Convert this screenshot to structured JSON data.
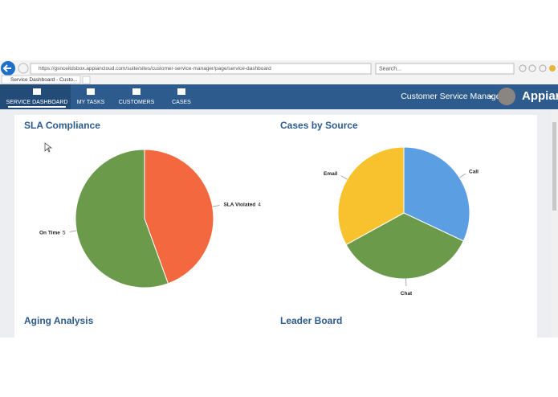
{
  "browser": {
    "url": "https://gsnceitdsbox.appiancloud.com/suite/sites/customer-service-manager/page/service-dashboard",
    "tab_title": "Service Dashboard - Custo...",
    "search_placeholder": "Search..."
  },
  "nav": {
    "items": [
      "SERVICE DASHBOARD",
      "MY TASKS",
      "CUSTOMERS",
      "CASES"
    ],
    "user_title": "Customer Service Manager",
    "brand": "Appian"
  },
  "chart_data": [
    {
      "type": "pie",
      "title": "SLA Compliance",
      "categories": [
        "SLA Violated",
        "On Time"
      ],
      "values": [
        4,
        5
      ],
      "colors": [
        "#f4683f",
        "#6b9a4a"
      ],
      "value_labels_shown": true
    },
    {
      "type": "pie",
      "title": "Cases by Source",
      "categories": [
        "Call",
        "Chat",
        "Email"
      ],
      "values": [
        32,
        35,
        33
      ],
      "colors": [
        "#5b9fe2",
        "#6b9a4a",
        "#f8c22e"
      ],
      "value_labels_shown": false
    }
  ],
  "sections": [
    "Aging Analysis",
    "Leader Board"
  ]
}
